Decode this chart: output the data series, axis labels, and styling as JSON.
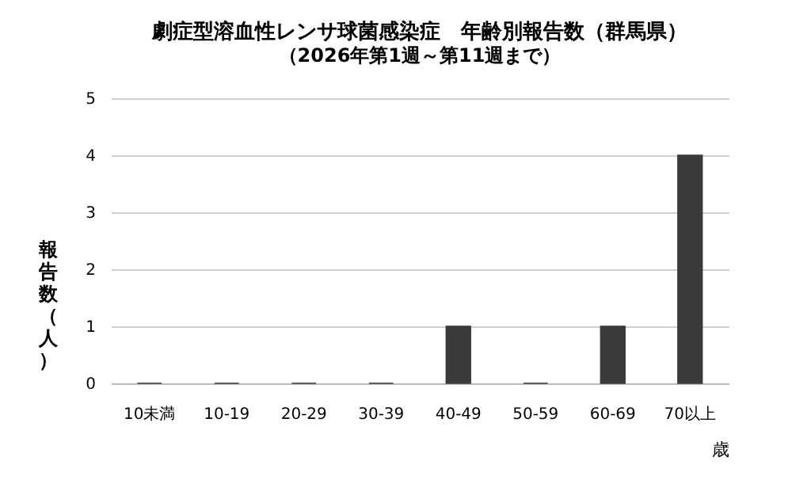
{
  "chart_data": {
    "type": "bar",
    "title": "劇症型溶血性レンサ球菌感染症　年齢別報告数（群馬県）",
    "subtitle": "（2026年第1週～第11週まで）",
    "xlabel": "歳",
    "ylabel": "報告数（人）",
    "categories": [
      "10未満",
      "10-19",
      "20-29",
      "30-39",
      "40-49",
      "50-59",
      "60-69",
      "70以上"
    ],
    "values": [
      0,
      0,
      0,
      0,
      1,
      0,
      1,
      4
    ],
    "color": "#3a3a3a",
    "ylim": [
      0,
      5
    ],
    "yticks": [
      0,
      1,
      2,
      3,
      4,
      5
    ],
    "grid": "y"
  }
}
